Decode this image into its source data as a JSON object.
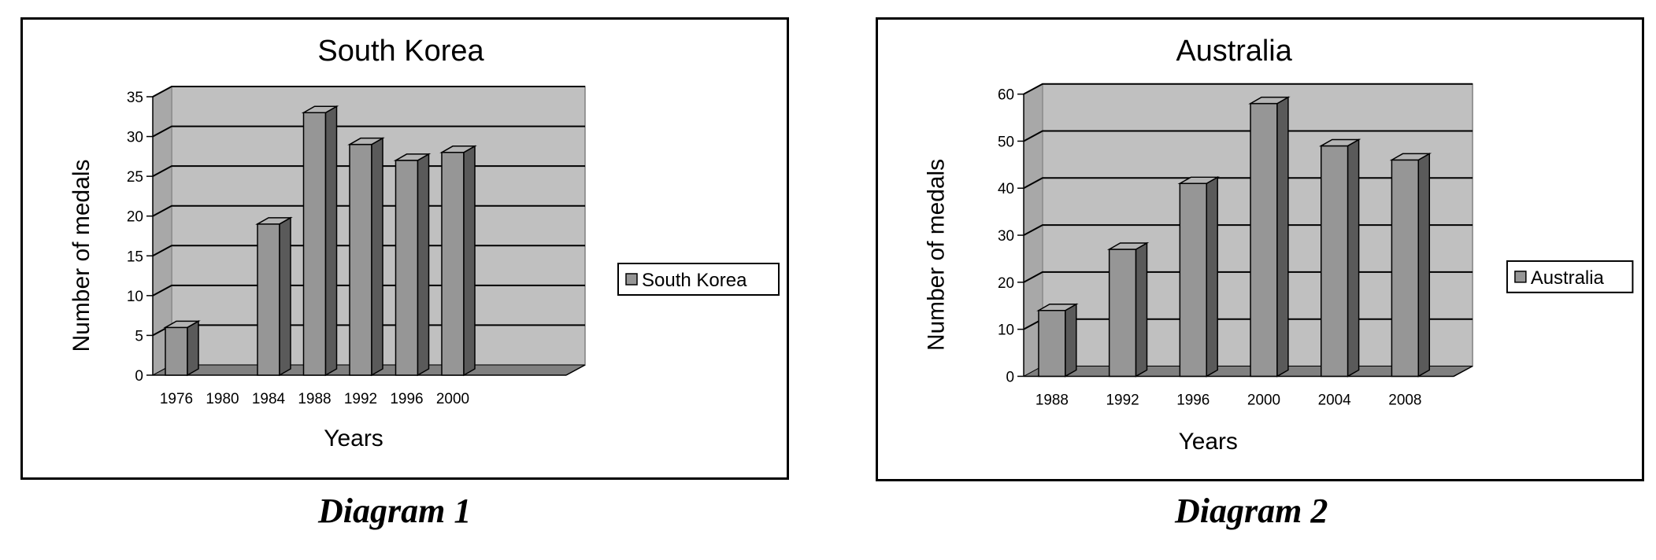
{
  "captions": [
    "Diagram 1",
    "Diagram 2"
  ],
  "chart_data": [
    {
      "type": "bar",
      "title": "South Korea",
      "xlabel": "Years",
      "ylabel": "Number of medals",
      "categories": [
        "1976",
        "1980",
        "1984",
        "1988",
        "1992",
        "1996",
        "2000"
      ],
      "series": [
        {
          "name": "South Korea",
          "values": [
            6,
            0,
            19,
            33,
            29,
            27,
            28
          ]
        }
      ],
      "ylim": [
        0,
        35
      ],
      "yticks": [
        0,
        5,
        10,
        15,
        20,
        25,
        30,
        35
      ],
      "grid": true,
      "legend": "right",
      "colors": {
        "bar": "#969696",
        "plot": "#c0c0c0",
        "floor": "#808080"
      }
    },
    {
      "type": "bar",
      "title": "Australia",
      "xlabel": "Years",
      "ylabel": "Number of medals",
      "categories": [
        "1988",
        "1992",
        "1996",
        "2000",
        "2004",
        "2008"
      ],
      "series": [
        {
          "name": "Australia",
          "values": [
            14,
            27,
            41,
            58,
            49,
            46
          ]
        }
      ],
      "ylim": [
        0,
        60
      ],
      "yticks": [
        0,
        10,
        20,
        30,
        40,
        50,
        60
      ],
      "grid": true,
      "legend": "right",
      "colors": {
        "bar": "#969696",
        "plot": "#c0c0c0",
        "floor": "#808080"
      }
    }
  ]
}
